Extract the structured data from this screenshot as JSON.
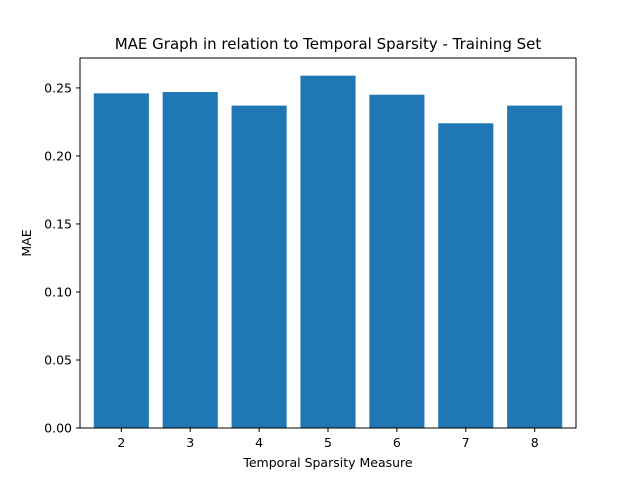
{
  "chart_data": {
    "type": "bar",
    "title": "MAE Graph in relation to Temporal Sparsity - Training Set",
    "xlabel": "Temporal Sparsity Measure",
    "ylabel": "MAE",
    "categories": [
      "2",
      "3",
      "4",
      "5",
      "6",
      "7",
      "8"
    ],
    "x": [
      2,
      3,
      4,
      5,
      6,
      7,
      8
    ],
    "values": [
      0.246,
      0.247,
      0.237,
      0.259,
      0.245,
      0.224,
      0.237
    ],
    "xlim": [
      1.4,
      8.6
    ],
    "ylim": [
      0,
      0.272
    ],
    "yticks": [
      0.0,
      0.05,
      0.1,
      0.15,
      0.2,
      0.25
    ],
    "ytick_labels": [
      "0.00",
      "0.05",
      "0.10",
      "0.15",
      "0.20",
      "0.25"
    ],
    "bar_color": "#1f77b4",
    "grid": false,
    "legend": false
  }
}
